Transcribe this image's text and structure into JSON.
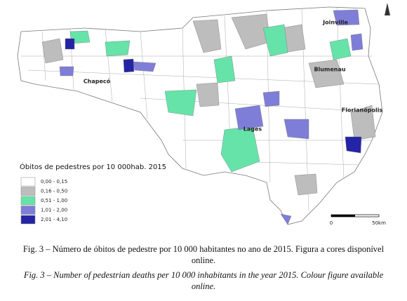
{
  "map": {
    "cities": [
      {
        "label": "Joinville"
      },
      {
        "label": "Blumenau"
      },
      {
        "label": "Chapecó"
      },
      {
        "label": "Florianópolis"
      },
      {
        "label": "Lages"
      }
    ],
    "legend": {
      "title": "Óbitos de pedestres por 10 000hab. 2015",
      "items": [
        {
          "label": "0,00 - 0,15",
          "color": "#ffffff"
        },
        {
          "label": "0,16 - 0,50",
          "color": "#bdbdbd"
        },
        {
          "label": "0,51 - 1,00",
          "color": "#66e3a9"
        },
        {
          "label": "1,01 - 2,00",
          "color": "#7e7ed8"
        },
        {
          "label": "2,01 - 4,10",
          "color": "#2424a6"
        }
      ]
    },
    "scale": {
      "start": "0",
      "end": "50km"
    }
  },
  "caption": {
    "pt": [
      "Fig. 3 – Número de óbitos de pedestre por 10 000 habitantes no ano de 2015. Figura a cores disponível",
      "online."
    ],
    "en": [
      "Fig. 3 – Number of pedestrian deaths per 10 000 inhabitants in the year 2015. Colour figure available",
      "online."
    ]
  }
}
